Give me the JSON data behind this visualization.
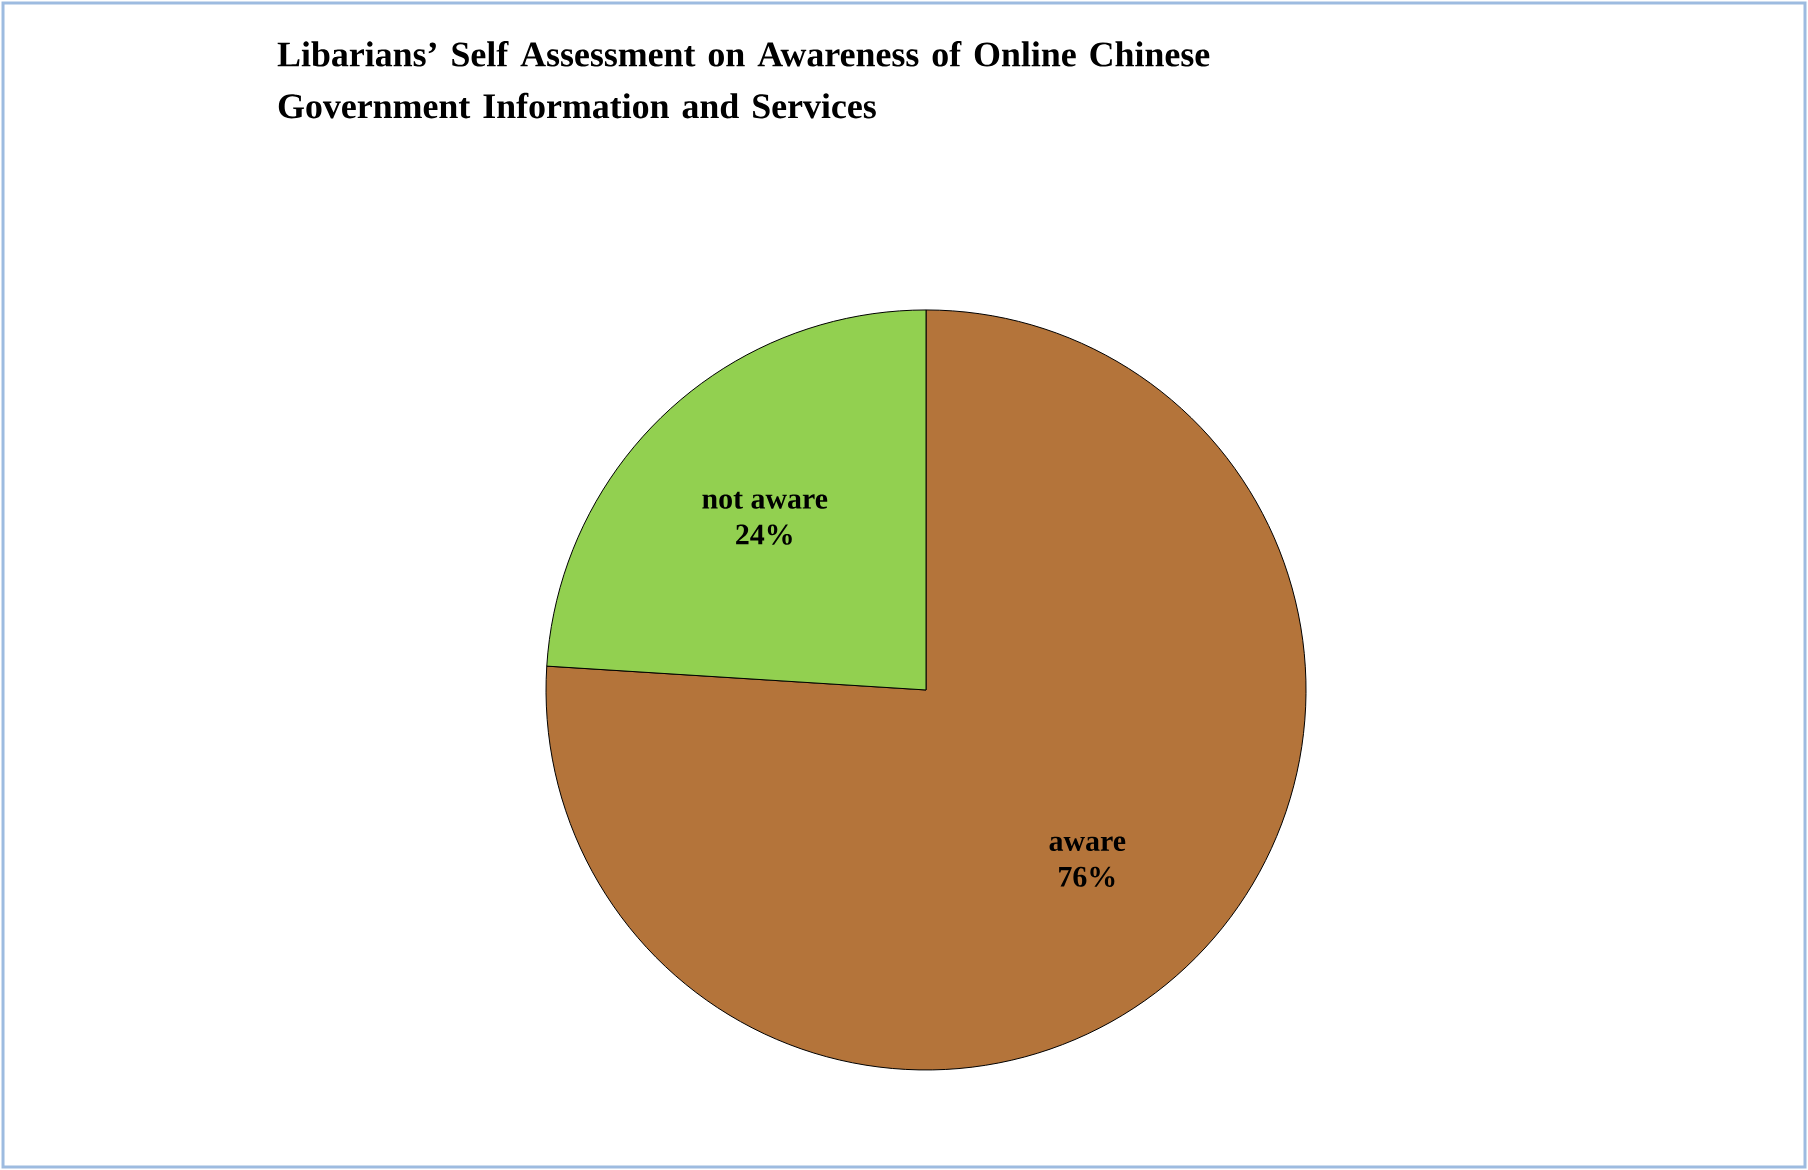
{
  "chart_data": {
    "type": "pie",
    "title": "Libarians’ Self Assessment on Awareness of Online Chinese Government Information and Services",
    "categories": [
      "aware",
      "not aware"
    ],
    "values": [
      76,
      24
    ],
    "value_labels": [
      "76%",
      "24%"
    ],
    "colors": [
      "#b4743a",
      "#92d050"
    ]
  }
}
